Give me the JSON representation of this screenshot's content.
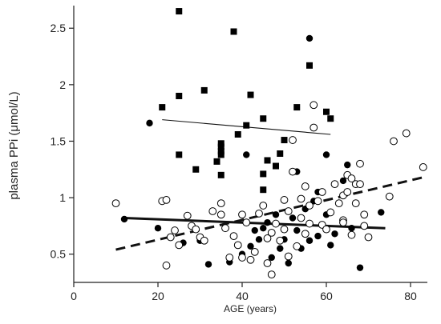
{
  "chart_data": {
    "type": "scatter",
    "title": "",
    "xlabel": "AGE (years)",
    "ylabel": "plasma PPi (μmol/L)",
    "xlim": [
      0,
      84
    ],
    "ylim": [
      0.25,
      2.7
    ],
    "xticks": [
      0,
      20,
      40,
      60,
      80
    ],
    "yticks": [
      0.5,
      1,
      1.5,
      2,
      2.5
    ],
    "ytick_labels": [
      "0.5",
      "1",
      "1.5",
      "2",
      "2.5"
    ],
    "grid": false,
    "legend": "none",
    "series": [
      {
        "marker": "square-filled",
        "points": [
          [
            25,
            2.65
          ],
          [
            38,
            2.47
          ],
          [
            56,
            2.17
          ],
          [
            21,
            1.8
          ],
          [
            25,
            1.9
          ],
          [
            31,
            1.95
          ],
          [
            42,
            1.91
          ],
          [
            53,
            1.8
          ],
          [
            60,
            1.76
          ],
          [
            61,
            1.7
          ],
          [
            45,
            1.7
          ],
          [
            41,
            1.64
          ],
          [
            39,
            1.56
          ],
          [
            35,
            1.48
          ],
          [
            35,
            1.45
          ],
          [
            35,
            1.41
          ],
          [
            35,
            1.38
          ],
          [
            25,
            1.38
          ],
          [
            34,
            1.32
          ],
          [
            29,
            1.25
          ],
          [
            35,
            1.2
          ],
          [
            50,
            1.51
          ],
          [
            49,
            1.39
          ],
          [
            46,
            1.33
          ],
          [
            48,
            1.28
          ],
          [
            45,
            1.21
          ],
          [
            45,
            1.07
          ]
        ]
      },
      {
        "marker": "circle-filled",
        "points": [
          [
            56,
            2.41
          ],
          [
            18,
            1.66
          ],
          [
            41,
            1.38
          ],
          [
            60,
            1.38
          ],
          [
            12,
            0.81
          ],
          [
            20,
            0.73
          ],
          [
            26,
            0.6
          ],
          [
            30,
            0.62
          ],
          [
            32,
            0.41
          ],
          [
            37,
            0.43
          ],
          [
            40,
            0.5
          ],
          [
            42,
            0.57
          ],
          [
            43,
            0.71
          ],
          [
            45,
            0.73
          ],
          [
            46,
            0.78
          ],
          [
            47,
            0.47
          ],
          [
            49,
            0.55
          ],
          [
            50,
            0.63
          ],
          [
            51,
            0.42
          ],
          [
            52,
            0.82
          ],
          [
            53,
            0.71
          ],
          [
            54,
            0.55
          ],
          [
            55,
            0.9
          ],
          [
            56,
            0.62
          ],
          [
            57,
            0.97
          ],
          [
            58,
            0.66
          ],
          [
            60,
            0.85
          ],
          [
            61,
            0.58
          ],
          [
            62,
            0.68
          ],
          [
            64,
            1.15
          ],
          [
            65,
            1.29
          ],
          [
            66,
            0.73
          ],
          [
            68,
            0.38
          ],
          [
            73,
            0.87
          ],
          [
            44,
            0.63
          ],
          [
            48,
            0.85
          ],
          [
            53,
            1.23
          ],
          [
            58,
            1.05
          ]
        ]
      },
      {
        "marker": "circle-open",
        "points": [
          [
            10,
            0.95
          ],
          [
            21,
            0.97
          ],
          [
            22,
            0.4
          ],
          [
            22,
            0.98
          ],
          [
            23,
            0.65
          ],
          [
            24,
            0.71
          ],
          [
            25,
            0.58
          ],
          [
            27,
            0.84
          ],
          [
            28,
            0.75
          ],
          [
            29,
            0.72
          ],
          [
            30,
            0.65
          ],
          [
            31,
            0.62
          ],
          [
            33,
            0.88
          ],
          [
            35,
            0.95
          ],
          [
            35,
            0.85
          ],
          [
            36,
            0.73
          ],
          [
            37,
            0.47
          ],
          [
            38,
            0.66
          ],
          [
            39,
            0.58
          ],
          [
            40,
            0.47
          ],
          [
            40,
            0.85
          ],
          [
            41,
            0.78
          ],
          [
            42,
            0.45
          ],
          [
            43,
            0.52
          ],
          [
            44,
            0.86
          ],
          [
            45,
            0.93
          ],
          [
            46,
            0.64
          ],
          [
            46,
            0.42
          ],
          [
            47,
            0.69
          ],
          [
            47,
            0.32
          ],
          [
            48,
            0.77
          ],
          [
            49,
            0.62
          ],
          [
            50,
            0.98
          ],
          [
            50,
            0.72
          ],
          [
            51,
            0.48
          ],
          [
            51,
            0.88
          ],
          [
            52,
            1.23
          ],
          [
            52,
            1.51
          ],
          [
            53,
            0.57
          ],
          [
            54,
            0.99
          ],
          [
            54,
            0.82
          ],
          [
            55,
            1.1
          ],
          [
            55,
            0.68
          ],
          [
            56,
            0.93
          ],
          [
            56,
            0.77
          ],
          [
            57,
            1.62
          ],
          [
            57,
            1.82
          ],
          [
            58,
            0.97
          ],
          [
            59,
            1.05
          ],
          [
            59,
            0.76
          ],
          [
            60,
            0.72
          ],
          [
            61,
            0.87
          ],
          [
            62,
            1.12
          ],
          [
            63,
            0.95
          ],
          [
            64,
            1.02
          ],
          [
            64,
            0.8
          ],
          [
            65,
            1.2
          ],
          [
            65,
            1.05
          ],
          [
            66,
            1.17
          ],
          [
            66,
            0.67
          ],
          [
            67,
            1.12
          ],
          [
            67,
            0.95
          ],
          [
            68,
            1.3
          ],
          [
            68,
            1.12
          ],
          [
            69,
            0.75
          ],
          [
            69,
            0.85
          ],
          [
            70,
            0.65
          ],
          [
            75,
            1.01
          ],
          [
            76,
            1.5
          ],
          [
            79,
            1.57
          ],
          [
            83,
            1.27
          ],
          [
            64,
            0.78
          ]
        ]
      }
    ],
    "trend_lines": [
      {
        "style": "solid-thin",
        "x": [
          21,
          61
        ],
        "y": [
          1.69,
          1.56
        ]
      },
      {
        "style": "solid-thick",
        "x": [
          12,
          74
        ],
        "y": [
          0.82,
          0.73
        ]
      },
      {
        "style": "dashed-thick",
        "x": [
          10,
          83
        ],
        "y": [
          0.54,
          1.18
        ]
      }
    ]
  }
}
